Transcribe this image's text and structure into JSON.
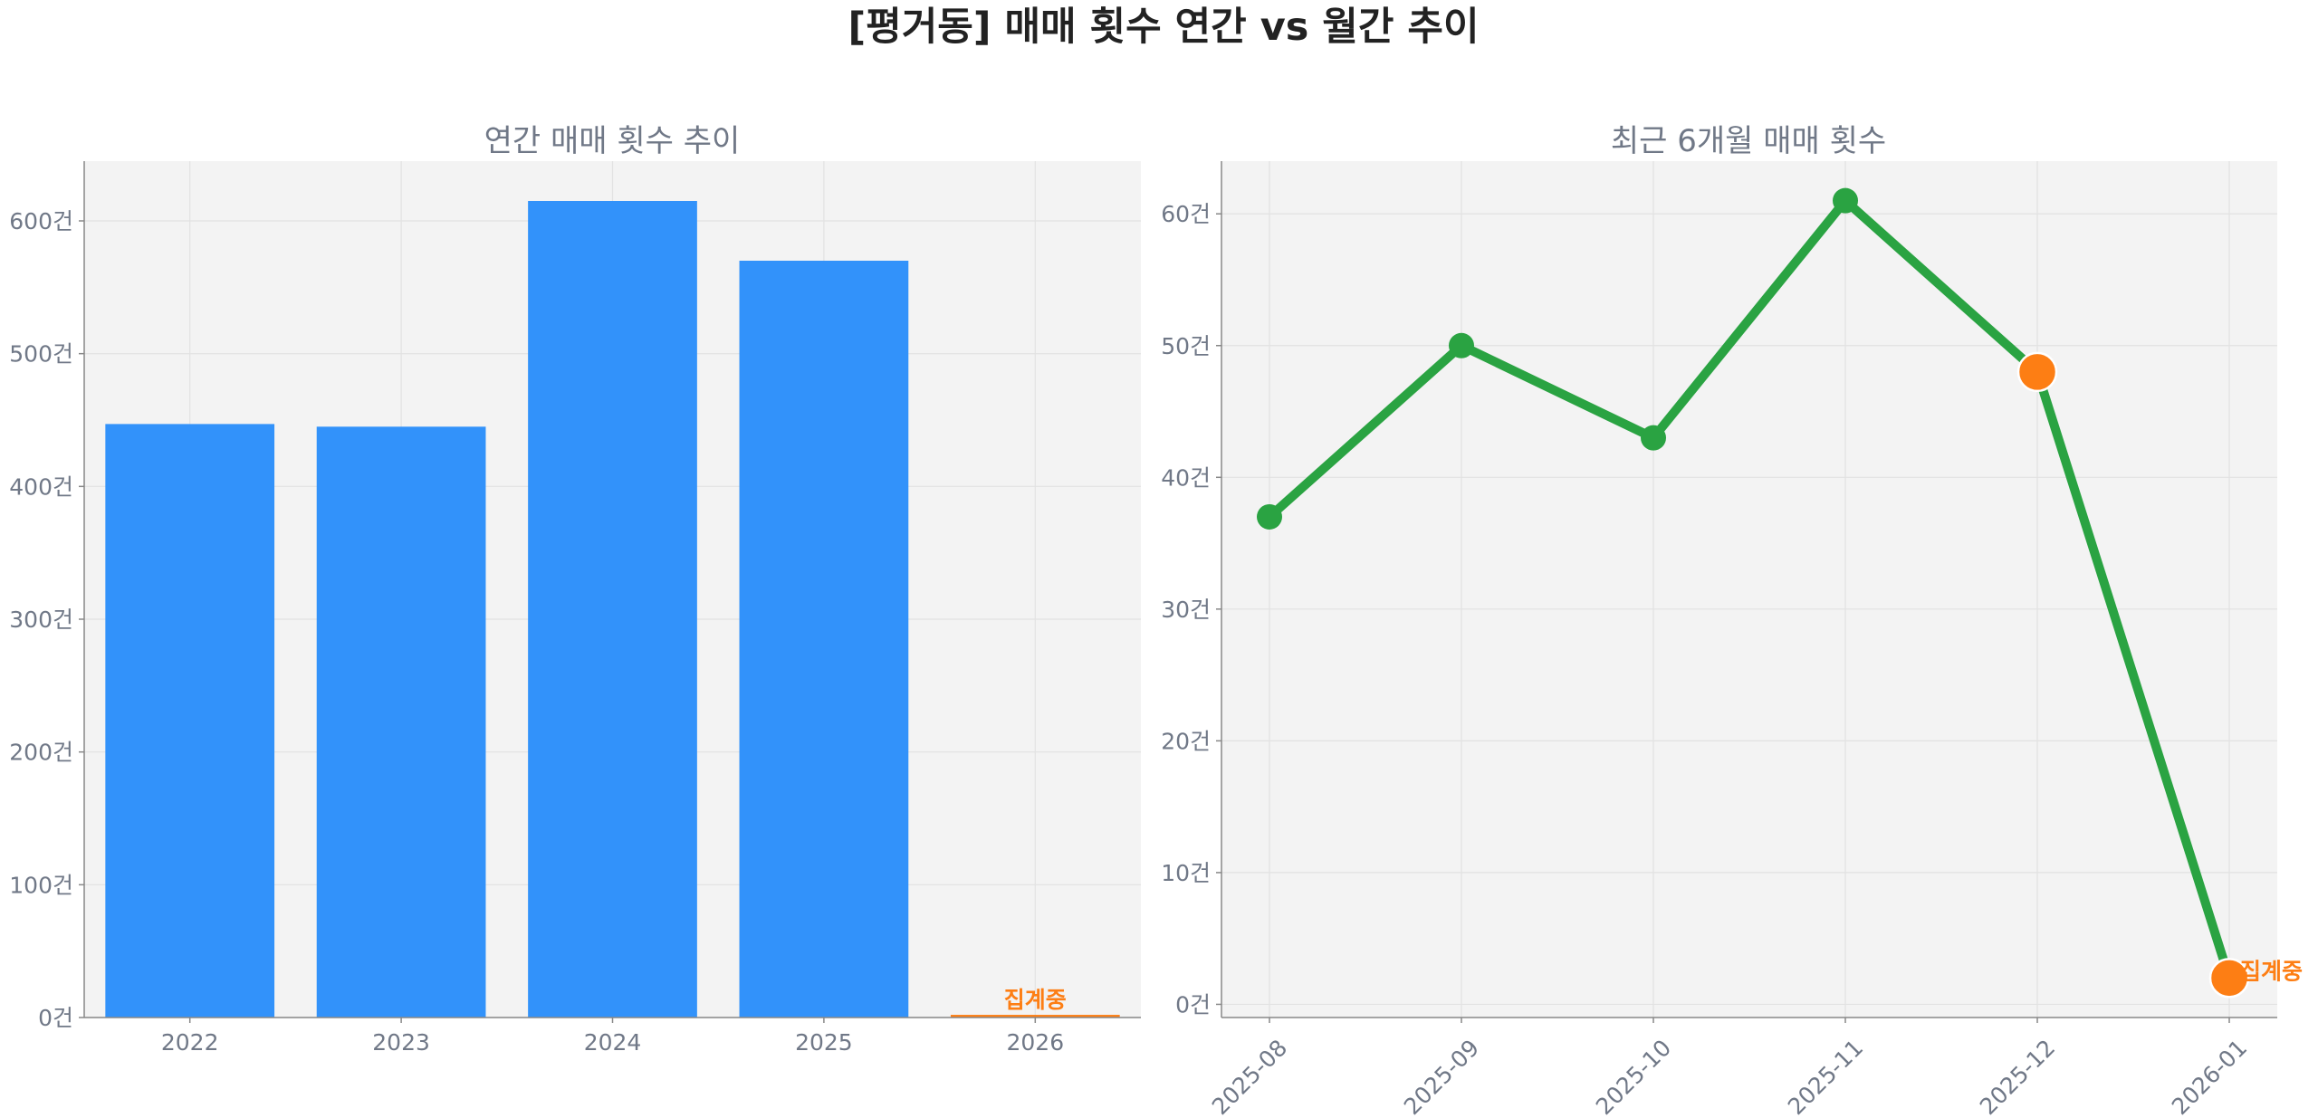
{
  "figure_title": "[평거동] 매매 횟수 연간 vs 월간 추이",
  "colors": {
    "bar": "#3292fa",
    "line": "#2aa342",
    "highlight": "#fd7e14",
    "plot_bg": "#f3f3f3",
    "grid": "#e2e2e2",
    "axis": "#888888",
    "tick_text": "#707887",
    "subtitle_text": "#707887",
    "title_text": "#222222"
  },
  "chart_data": [
    {
      "type": "bar",
      "title": "연간 매매 횟수 추이",
      "xlabel": "",
      "ylabel": "",
      "categories": [
        "2022",
        "2023",
        "2024",
        "2025",
        "2026"
      ],
      "values": [
        447,
        445,
        615,
        570,
        2
      ],
      "ylim": [
        0,
        645
      ],
      "yticks": [
        0,
        100,
        200,
        300,
        400,
        500,
        600
      ],
      "ytick_labels": [
        "0건",
        "100건",
        "200건",
        "300건",
        "400건",
        "500건",
        "600건"
      ],
      "grid": true,
      "highlight_index": 4,
      "annotation": {
        "index": 4,
        "text": "집계중"
      }
    },
    {
      "type": "line",
      "title": "최근 6개월 매매 횟수",
      "xlabel": "",
      "ylabel": "",
      "categories": [
        "2025-08",
        "2025-09",
        "2025-10",
        "2025-11",
        "2025-12",
        "2026-01"
      ],
      "values": [
        37,
        50,
        43,
        61,
        48,
        2
      ],
      "ylim": [
        -1,
        64
      ],
      "yticks": [
        0,
        10,
        20,
        30,
        40,
        50,
        60
      ],
      "ytick_labels": [
        "0건",
        "10건",
        "20건",
        "30건",
        "40건",
        "50건",
        "60건"
      ],
      "grid": true,
      "highlight_indices": [
        4,
        5
      ],
      "annotation": {
        "index": 5,
        "text": "집계중"
      }
    }
  ]
}
